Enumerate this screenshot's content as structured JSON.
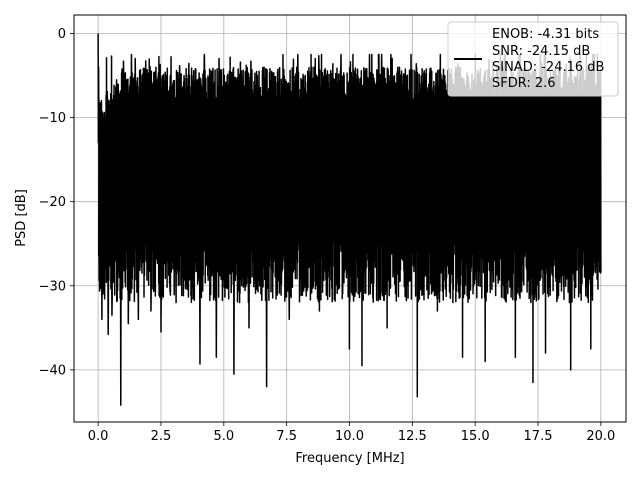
{
  "chart_data": {
    "type": "line",
    "title": "",
    "xlabel": "Frequency [MHz]",
    "ylabel": "PSD [dB]",
    "xlim": [
      -0.96,
      21.0
    ],
    "ylim": [
      -46.2,
      2.2
    ],
    "xticks": [
      0.0,
      2.5,
      5.0,
      7.5,
      10.0,
      12.5,
      15.0,
      17.5,
      20.0
    ],
    "xtick_labels": [
      "0.0",
      "2.5",
      "5.0",
      "7.5",
      "10.0",
      "12.5",
      "15.0",
      "17.5",
      "20.0"
    ],
    "yticks": [
      0,
      -10,
      -20,
      -30,
      -40
    ],
    "ytick_labels": [
      "0",
      "−10",
      "−20",
      "−30",
      "−40"
    ],
    "grid": true,
    "legend": {
      "placement": "top-right",
      "lines": [
        "ENOB: -4.31 bits",
        "SNR: -24.15 dB",
        "SINAD: -24.16 dB",
        "SFDR: 2.6"
      ]
    },
    "series": [
      {
        "color": "#000000",
        "description": "Noise-like power spectral density from 0 to 20 MHz",
        "x_range": [
          0.0,
          20.0
        ],
        "peak": {
          "x": 0.0,
          "y": 0.0
        },
        "typical_band": [
          -28,
          -6
        ],
        "min_value": -44.2,
        "dips": [
          {
            "x": 0.15,
            "y": -34
          },
          {
            "x": 0.4,
            "y": -35.8
          },
          {
            "x": 0.55,
            "y": -33.5
          },
          {
            "x": 0.9,
            "y": -44.2
          },
          {
            "x": 1.2,
            "y": -34.5
          },
          {
            "x": 1.6,
            "y": -34
          },
          {
            "x": 2.1,
            "y": -33
          },
          {
            "x": 2.5,
            "y": -35.5
          },
          {
            "x": 3.1,
            "y": -32
          },
          {
            "x": 4.05,
            "y": -39.3
          },
          {
            "x": 4.7,
            "y": -38.5
          },
          {
            "x": 5.4,
            "y": -40.5
          },
          {
            "x": 6.0,
            "y": -35
          },
          {
            "x": 6.7,
            "y": -42
          },
          {
            "x": 7.6,
            "y": -34
          },
          {
            "x": 8.8,
            "y": -33
          },
          {
            "x": 10.0,
            "y": -37.5
          },
          {
            "x": 10.5,
            "y": -39.5
          },
          {
            "x": 11.5,
            "y": -35
          },
          {
            "x": 12.7,
            "y": -43.2
          },
          {
            "x": 13.5,
            "y": -33
          },
          {
            "x": 14.5,
            "y": -38.5
          },
          {
            "x": 15.4,
            "y": -39
          },
          {
            "x": 16.6,
            "y": -38.5
          },
          {
            "x": 17.3,
            "y": -41.5
          },
          {
            "x": 17.8,
            "y": -38
          },
          {
            "x": 18.8,
            "y": -40
          },
          {
            "x": 19.6,
            "y": -37.5
          }
        ]
      }
    ]
  }
}
